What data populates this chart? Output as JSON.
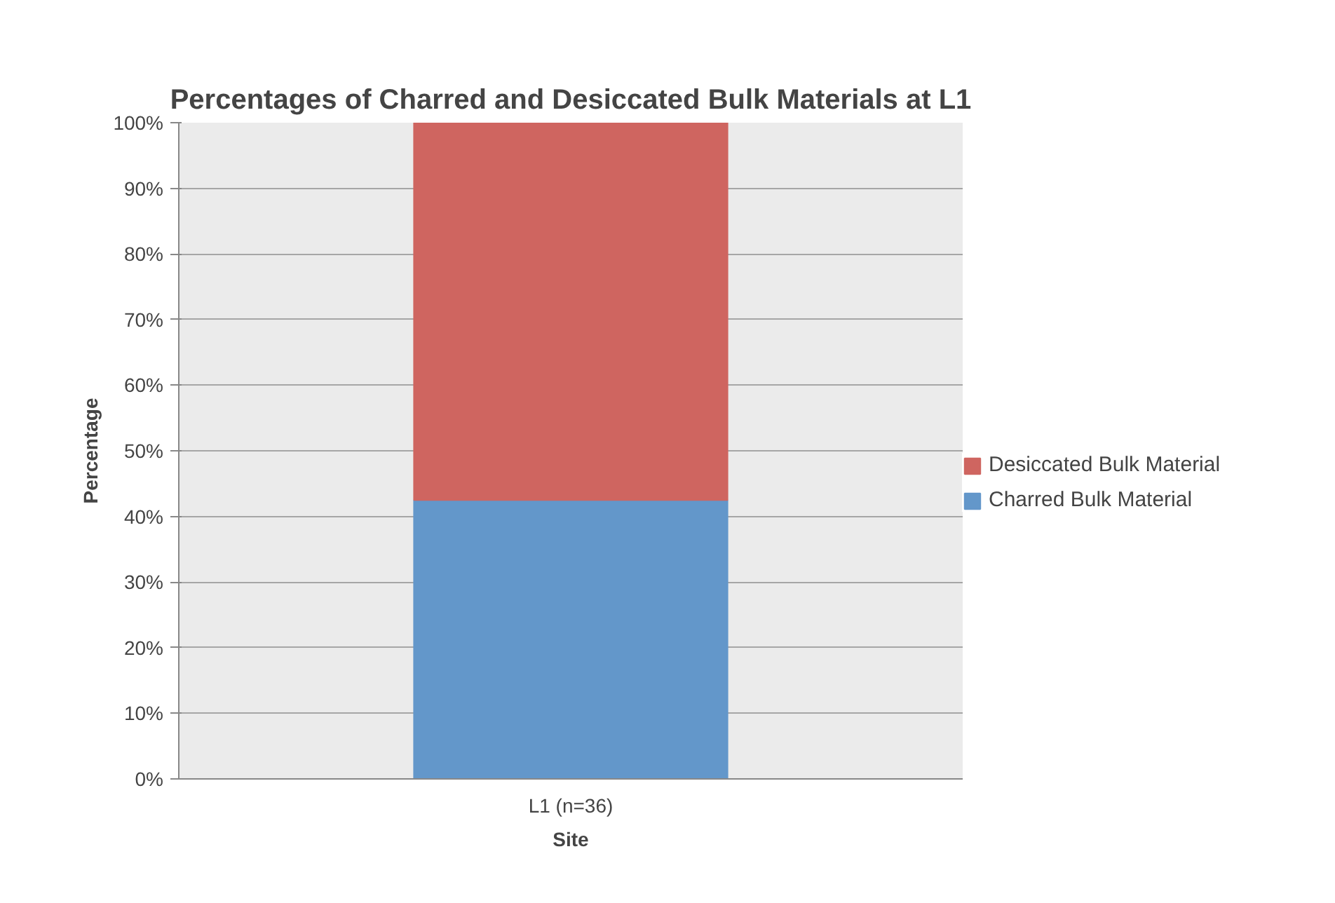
{
  "chart_data": {
    "type": "bar",
    "title": "Percentages of Charred and Desiccated Bulk Materials at L1",
    "xlabel": "Site",
    "ylabel": "Percentage",
    "categories": [
      "L1 (n=36)"
    ],
    "stacked": true,
    "series": [
      {
        "name": "Charred Bulk Material",
        "color": "#6397ca",
        "values": [
          42.5
        ]
      },
      {
        "name": "Desiccated Bulk Material",
        "color": "#cf6560",
        "values": [
          57.5
        ]
      }
    ],
    "ylim": [
      0,
      100
    ],
    "yticks": [
      {
        "value": 0,
        "label": "0%"
      },
      {
        "value": 10,
        "label": "10%"
      },
      {
        "value": 20,
        "label": "20%"
      },
      {
        "value": 30,
        "label": "30%"
      },
      {
        "value": 40,
        "label": "40%"
      },
      {
        "value": 50,
        "label": "50%"
      },
      {
        "value": 60,
        "label": "60%"
      },
      {
        "value": 70,
        "label": "70%"
      },
      {
        "value": 80,
        "label": "80%"
      },
      {
        "value": 90,
        "label": "90%"
      },
      {
        "value": 100,
        "label": "100%"
      }
    ],
    "grid": "y",
    "legend": "right"
  }
}
